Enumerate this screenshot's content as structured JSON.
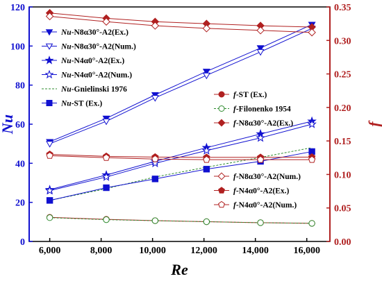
{
  "chart_data": {
    "type": "line",
    "x_label": "Re",
    "y_left_label": "Nu",
    "y_right_label": "f",
    "x_ticks": [
      6000,
      8000,
      10000,
      12000,
      14000,
      16000
    ],
    "x_tick_labels": [
      "6,000",
      "8,000",
      "10,000",
      "12,000",
      "14,000",
      "16,000"
    ],
    "xlim": [
      5200,
      16900
    ],
    "y_left_ticks": [
      0,
      20,
      40,
      60,
      80,
      100,
      120
    ],
    "y_left_tick_labels": [
      "0",
      "20",
      "40",
      "60",
      "80",
      "100",
      "120"
    ],
    "y_left_lim": [
      0,
      120
    ],
    "y_right_ticks": [
      0,
      0.05,
      0.1,
      0.15,
      0.2,
      0.25,
      0.3,
      0.35
    ],
    "y_right_tick_labels": [
      "0.00",
      "0.05",
      "0.10",
      "0.15",
      "0.20",
      "0.25",
      "0.30",
      "0.35"
    ],
    "y_right_lim": [
      0,
      0.35
    ],
    "colors": {
      "left_axis": "#1010d0",
      "right_axis": "#b02020",
      "nu_series": "#1010d0",
      "green": "#2e8b2e"
    },
    "series": [
      {
        "name": "Nu-N8α30°-A2(Ex.)",
        "legend_prefix": "Nu",
        "legend_rest": "-N8α30°-A2(Ex.)",
        "axis": "left",
        "color": "#1010d0",
        "marker": "triangle-down",
        "filled": true,
        "dash": "",
        "x": [
          6000,
          8200,
          10100,
          12100,
          14200,
          16200
        ],
        "y": [
          51,
          63,
          75,
          87,
          99,
          111
        ]
      },
      {
        "name": "Nu-N8α30°-A2(Num.)",
        "legend_prefix": "Nu",
        "legend_rest": "-N8α30°-A2(Num.)",
        "axis": "left",
        "color": "#1010d0",
        "marker": "triangle-down",
        "filled": false,
        "dash": "",
        "x": [
          6000,
          8200,
          10100,
          12100,
          14200,
          16200
        ],
        "y": [
          50,
          61.5,
          73.5,
          85,
          97,
          109
        ]
      },
      {
        "name": "Nu-N4α0°-A2(Ex.)",
        "legend_prefix": "Nu",
        "legend_rest": "-N4α0°-A2(Ex.)",
        "axis": "left",
        "color": "#1010d0",
        "marker": "star",
        "filled": true,
        "dash": "",
        "x": [
          6000,
          8200,
          10100,
          12100,
          14200,
          16200
        ],
        "y": [
          26.5,
          34,
          41,
          48,
          55,
          61.5
        ]
      },
      {
        "name": "Nu-N4α0°-A2(Num.)",
        "legend_prefix": "Nu",
        "legend_rest": "-N4α0°-A2(Num.)",
        "axis": "left",
        "color": "#1010d0",
        "marker": "star",
        "filled": false,
        "dash": "",
        "x": [
          6000,
          8200,
          10100,
          12100,
          14200,
          16200
        ],
        "y": [
          26,
          33,
          40,
          46.5,
          53,
          60
        ]
      },
      {
        "name": "Nu-Gnielinski 1976",
        "legend_prefix": "Nu",
        "legend_rest": "-Gnielinski 1976",
        "axis": "left",
        "color": "#2e8b2e",
        "marker": "none",
        "filled": false,
        "dash": "3,2",
        "x": [
          6000,
          8200,
          10100,
          12100,
          14200,
          16200
        ],
        "y": [
          21,
          27,
          33,
          38,
          43,
          48
        ]
      },
      {
        "name": "Nu-ST (Ex.)",
        "legend_prefix": "Nu",
        "legend_rest": "-ST (Ex.)",
        "axis": "left",
        "color": "#1010d0",
        "marker": "square",
        "filled": true,
        "dash": "",
        "x": [
          6000,
          8200,
          10100,
          12100,
          14200,
          16200
        ],
        "y": [
          21,
          27.5,
          32,
          37,
          41,
          46
        ]
      },
      {
        "name": "f-ST (Ex.)",
        "legend_prefix": "f",
        "legend_rest": "-ST (Ex.)",
        "axis": "right",
        "color": "#b02020",
        "marker": "circle",
        "filled": true,
        "dash": "",
        "x": [
          6000,
          8200,
          10100,
          12100,
          14200,
          16200
        ],
        "y": [
          0.036,
          0.033,
          0.031,
          0.0295,
          0.028,
          0.027
        ]
      },
      {
        "name": "f-Filonenko 1954",
        "legend_prefix": "f",
        "legend_rest": "-Filonenko 1954",
        "axis": "right",
        "color": "#2e8b2e",
        "marker": "circle",
        "filled": false,
        "dash": "3,2",
        "x": [
          6000,
          8200,
          10100,
          12100,
          14200,
          16200
        ],
        "y": [
          0.0355,
          0.0325,
          0.031,
          0.0295,
          0.028,
          0.027
        ]
      },
      {
        "name": "f-N8α30°-A2(Ex.)",
        "legend_prefix": "f",
        "legend_rest": "-N8α30°-A2(Ex.)",
        "axis": "right",
        "color": "#b02020",
        "marker": "diamond",
        "filled": true,
        "dash": "",
        "x": [
          6000,
          8200,
          10100,
          12100,
          14200,
          16200
        ],
        "y": [
          0.341,
          0.333,
          0.328,
          0.325,
          0.322,
          0.32
        ]
      },
      {
        "name": "f-N8α30°-A2(Num.)",
        "legend_prefix": "f",
        "legend_rest": "-N8α30°-A2(Num.)",
        "axis": "right",
        "color": "#b02020",
        "marker": "diamond",
        "filled": false,
        "dash": "",
        "x": [
          6000,
          8200,
          10100,
          12100,
          14200,
          16200
        ],
        "y": [
          0.336,
          0.328,
          0.322,
          0.318,
          0.315,
          0.312
        ]
      },
      {
        "name": "f-N4α0°-A2(Ex.)",
        "legend_prefix": "f",
        "legend_rest": "-N4α0°-A2(Ex.)",
        "axis": "right",
        "color": "#b02020",
        "marker": "pentagon",
        "filled": true,
        "dash": "",
        "x": [
          6000,
          8200,
          10100,
          12100,
          14200,
          16200
        ],
        "y": [
          0.13,
          0.127,
          0.126,
          0.1255,
          0.1255,
          0.126
        ]
      },
      {
        "name": "f-N4α0°-A2(Num.)",
        "legend_prefix": "f",
        "legend_rest": "-N4α0°-A2(Num.)",
        "axis": "right",
        "color": "#b02020",
        "marker": "pentagon",
        "filled": false,
        "dash": "",
        "x": [
          6000,
          8200,
          10100,
          12100,
          14200,
          16200
        ],
        "y": [
          0.128,
          0.125,
          0.123,
          0.122,
          0.122,
          0.122
        ]
      }
    ],
    "legend_groups": [
      {
        "position": "top-left",
        "series": [
          0,
          1,
          2,
          3,
          4,
          5
        ]
      },
      {
        "position": "center-right",
        "series": [
          6,
          7,
          8
        ]
      },
      {
        "position": "bottom-right",
        "series": [
          9,
          10,
          11
        ]
      }
    ]
  }
}
